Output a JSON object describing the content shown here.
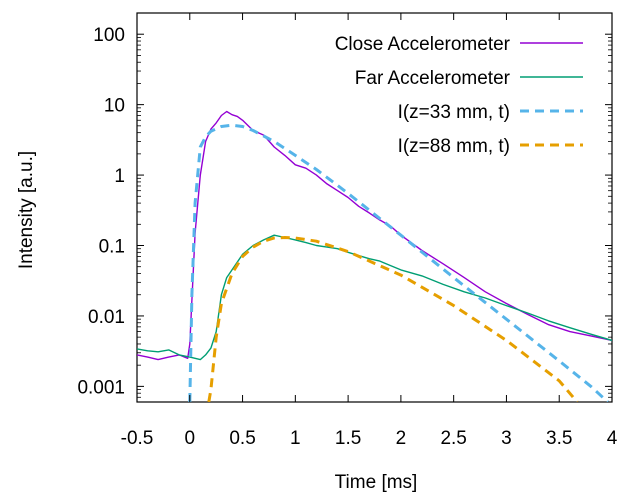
{
  "chart_data": {
    "type": "line",
    "title": "",
    "xlabel": "Time [ms]",
    "ylabel": "Intensity [a.u.]",
    "xlim": [
      -0.5,
      4
    ],
    "ylim": [
      0.0006,
      200
    ],
    "yscale": "log",
    "grid": false,
    "legend_position": "top-right",
    "x_ticks": [
      -0.5,
      0,
      0.5,
      1,
      1.5,
      2,
      2.5,
      3,
      3.5,
      4
    ],
    "x_tick_labels": [
      "-0.5",
      "0",
      "0.5",
      "1",
      "1.5",
      "2",
      "2.5",
      "3",
      "3.5",
      "4"
    ],
    "y_ticks": [
      0.001,
      0.01,
      0.1,
      1,
      10,
      100
    ],
    "y_tick_labels": [
      "0.001",
      "0.01",
      "0.1",
      "1",
      "10",
      "100"
    ],
    "series": [
      {
        "name": "Close Accelerometer",
        "color": "#9400d3",
        "style": "solid",
        "x": [
          -0.5,
          -0.4,
          -0.3,
          -0.2,
          -0.1,
          -0.02,
          0.0,
          0.05,
          0.1,
          0.15,
          0.2,
          0.25,
          0.3,
          0.35,
          0.4,
          0.45,
          0.5,
          0.6,
          0.7,
          0.8,
          0.9,
          1.0,
          1.1,
          1.2,
          1.3,
          1.4,
          1.5,
          1.6,
          1.7,
          1.8,
          1.9,
          2.0,
          2.2,
          2.4,
          2.6,
          2.8,
          3.0,
          3.2,
          3.4,
          3.6,
          3.8,
          4.0
        ],
        "y": [
          0.0028,
          0.0026,
          0.0024,
          0.0026,
          0.0028,
          0.0025,
          0.004,
          0.15,
          1.0,
          3.0,
          4.5,
          5.5,
          7.0,
          8.0,
          7.2,
          6.8,
          6.0,
          4.3,
          3.7,
          2.5,
          1.9,
          1.4,
          1.25,
          1.0,
          0.75,
          0.6,
          0.48,
          0.36,
          0.29,
          0.23,
          0.19,
          0.14,
          0.085,
          0.055,
          0.035,
          0.022,
          0.015,
          0.0105,
          0.0075,
          0.006,
          0.0052,
          0.0045
        ]
      },
      {
        "name": "Far Accelerometer",
        "color": "#009e73",
        "style": "solid",
        "x": [
          -0.5,
          -0.4,
          -0.3,
          -0.2,
          -0.1,
          0.0,
          0.1,
          0.15,
          0.2,
          0.25,
          0.3,
          0.35,
          0.4,
          0.5,
          0.6,
          0.7,
          0.8,
          0.9,
          1.0,
          1.1,
          1.2,
          1.3,
          1.4,
          1.5,
          1.6,
          1.7,
          1.8,
          1.9,
          2.0,
          2.2,
          2.4,
          2.6,
          2.8,
          3.0,
          3.2,
          3.4,
          3.6,
          3.8,
          4.0
        ],
        "y": [
          0.0034,
          0.0032,
          0.0031,
          0.0033,
          0.0028,
          0.0026,
          0.0024,
          0.0028,
          0.0035,
          0.006,
          0.02,
          0.035,
          0.045,
          0.075,
          0.1,
          0.12,
          0.14,
          0.13,
          0.12,
          0.11,
          0.1,
          0.095,
          0.09,
          0.08,
          0.072,
          0.065,
          0.06,
          0.052,
          0.045,
          0.037,
          0.028,
          0.022,
          0.018,
          0.014,
          0.011,
          0.0085,
          0.0068,
          0.0055,
          0.0045
        ]
      },
      {
        "name": "I(z=33 mm, t)",
        "color": "#56b4e9",
        "style": "dashed",
        "x": [
          0.0,
          0.02,
          0.05,
          0.1,
          0.15,
          0.2,
          0.3,
          0.4,
          0.5,
          0.6,
          0.8,
          1.0,
          1.2,
          1.5,
          2.0,
          2.5,
          3.0,
          3.5,
          3.8,
          3.96
        ],
        "y": [
          0.0006,
          0.02,
          0.4,
          2.5,
          3.5,
          4.2,
          4.9,
          5.1,
          4.9,
          4.3,
          3.0,
          1.9,
          1.2,
          0.55,
          0.14,
          0.035,
          0.009,
          0.0023,
          0.001,
          0.0006
        ]
      },
      {
        "name": "I(z=88 mm, t)",
        "color": "#e69f00",
        "style": "dashed",
        "x": [
          0.18,
          0.2,
          0.25,
          0.3,
          0.4,
          0.5,
          0.6,
          0.7,
          0.8,
          0.9,
          1.0,
          1.2,
          1.5,
          2.0,
          2.5,
          3.0,
          3.5,
          3.67
        ],
        "y": [
          0.0006,
          0.0009,
          0.005,
          0.015,
          0.04,
          0.07,
          0.095,
          0.115,
          0.128,
          0.13,
          0.128,
          0.115,
          0.082,
          0.038,
          0.014,
          0.0045,
          0.0012,
          0.0006
        ]
      }
    ]
  }
}
